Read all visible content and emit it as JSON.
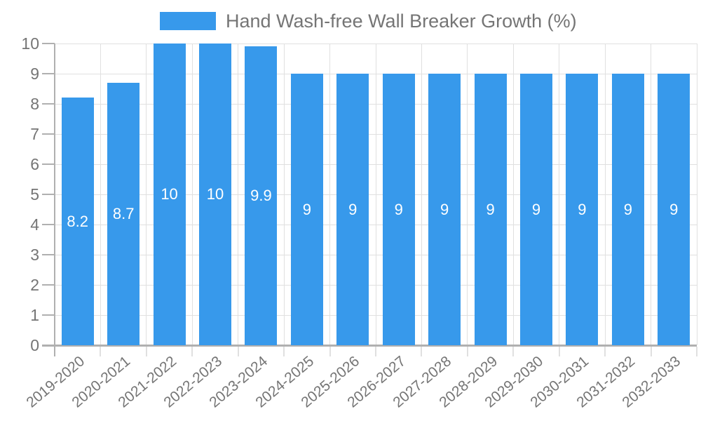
{
  "colors": {
    "bar": "#3799EB",
    "grid_line": "#E0E0E0",
    "axis_line": "#B0B0B0",
    "tick": "#B0B0B0",
    "axis_label_text": "#757575",
    "legend_text": "#757575",
    "value_label_text": "#FFFFFF",
    "background": "#FFFFFF"
  },
  "chart_data": {
    "type": "bar",
    "title": "Hand Wash-free Wall Breaker Growth (%)",
    "xlabel": "",
    "ylabel": "",
    "categories": [
      "2019-2020",
      "2020-2021",
      "2021-2022",
      "2022-2023",
      "2023-2024",
      "2024-2025",
      "2025-2026",
      "2026-2027",
      "2027-2028",
      "2028-2029",
      "2029-2030",
      "2030-2031",
      "2031-2032",
      "2032-2033"
    ],
    "values": [
      8.2,
      8.7,
      10,
      10,
      9.9,
      9,
      9,
      9,
      9,
      9,
      9,
      9,
      9,
      9
    ],
    "value_labels": [
      "8.2",
      "8.7",
      "10",
      "10",
      "9.9",
      "9",
      "9",
      "9",
      "9",
      "9",
      "9",
      "9",
      "9",
      "9"
    ],
    "ylim": [
      0,
      10
    ],
    "yticks": [
      0,
      1,
      2,
      3,
      4,
      5,
      6,
      7,
      8,
      9,
      10
    ],
    "grid": true,
    "legend_position": "top",
    "legend_entries": [
      "Hand Wash-free Wall Breaker Growth (%)"
    ]
  }
}
